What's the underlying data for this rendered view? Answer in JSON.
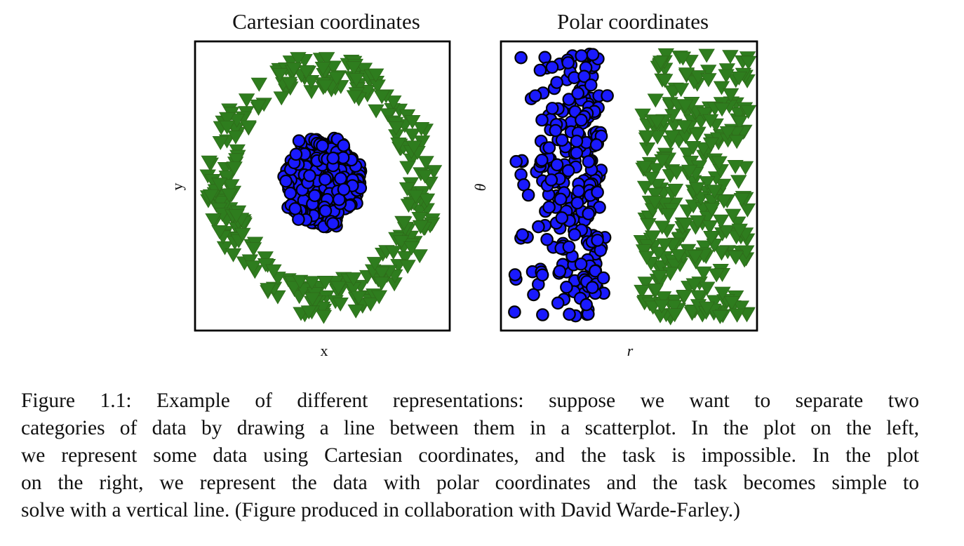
{
  "colors": {
    "circle_fill": "#1a1aff",
    "circle_stroke": "#000000",
    "triangle_fill": "#2e7d1e",
    "triangle_stroke": "#2e6b1a"
  },
  "chart_data": [
    {
      "type": "scatter",
      "title": "Cartesian coordinates",
      "xlabel": "x",
      "ylabel": "y",
      "xlim": [
        -1.6,
        1.6
      ],
      "ylim": [
        -1.6,
        1.6
      ],
      "grid": false,
      "ticks": "none",
      "series": [
        {
          "marker": "circle",
          "color": "#1a1aff",
          "count": 260,
          "distribution": "disk",
          "center": [
            0.0,
            0.05
          ],
          "radius_range": [
            0.0,
            0.55
          ]
        },
        {
          "marker": "triangle-down",
          "color": "#2e7d1e",
          "count": 300,
          "distribution": "ring",
          "center": [
            0.0,
            0.0
          ],
          "radius_range": [
            1.05,
            1.45
          ]
        }
      ]
    },
    {
      "type": "scatter",
      "title": "Polar coordinates",
      "xlabel": "r",
      "ylabel": "θ",
      "xlim": [
        -0.05,
        1.6
      ],
      "ylim": [
        -3.4,
        3.4
      ],
      "grid": false,
      "ticks": "none",
      "series": [
        {
          "marker": "circle",
          "color": "#1a1aff",
          "count": 260,
          "x_range": [
            0.0,
            0.65
          ],
          "y_range": [
            -3.1,
            3.1
          ]
        },
        {
          "marker": "triangle-down",
          "color": "#2e7d1e",
          "count": 300,
          "x_range": [
            0.85,
            1.55
          ],
          "y_range": [
            -3.1,
            3.1
          ]
        }
      ]
    }
  ],
  "caption": {
    "lines": [
      "Figure 1.1: Example of different representations: suppose we want to separate two",
      "categories of data by drawing a line between them in a scatterplot. In the plot on the left,",
      "we represent some data using Cartesian coordinates, and the task is impossible. In the plot",
      "on the right, we represent the data with polar coordinates and the task becomes simple to",
      "solve with a vertical line. (Figure produced in collaboration with David Warde-Farley.)"
    ]
  }
}
